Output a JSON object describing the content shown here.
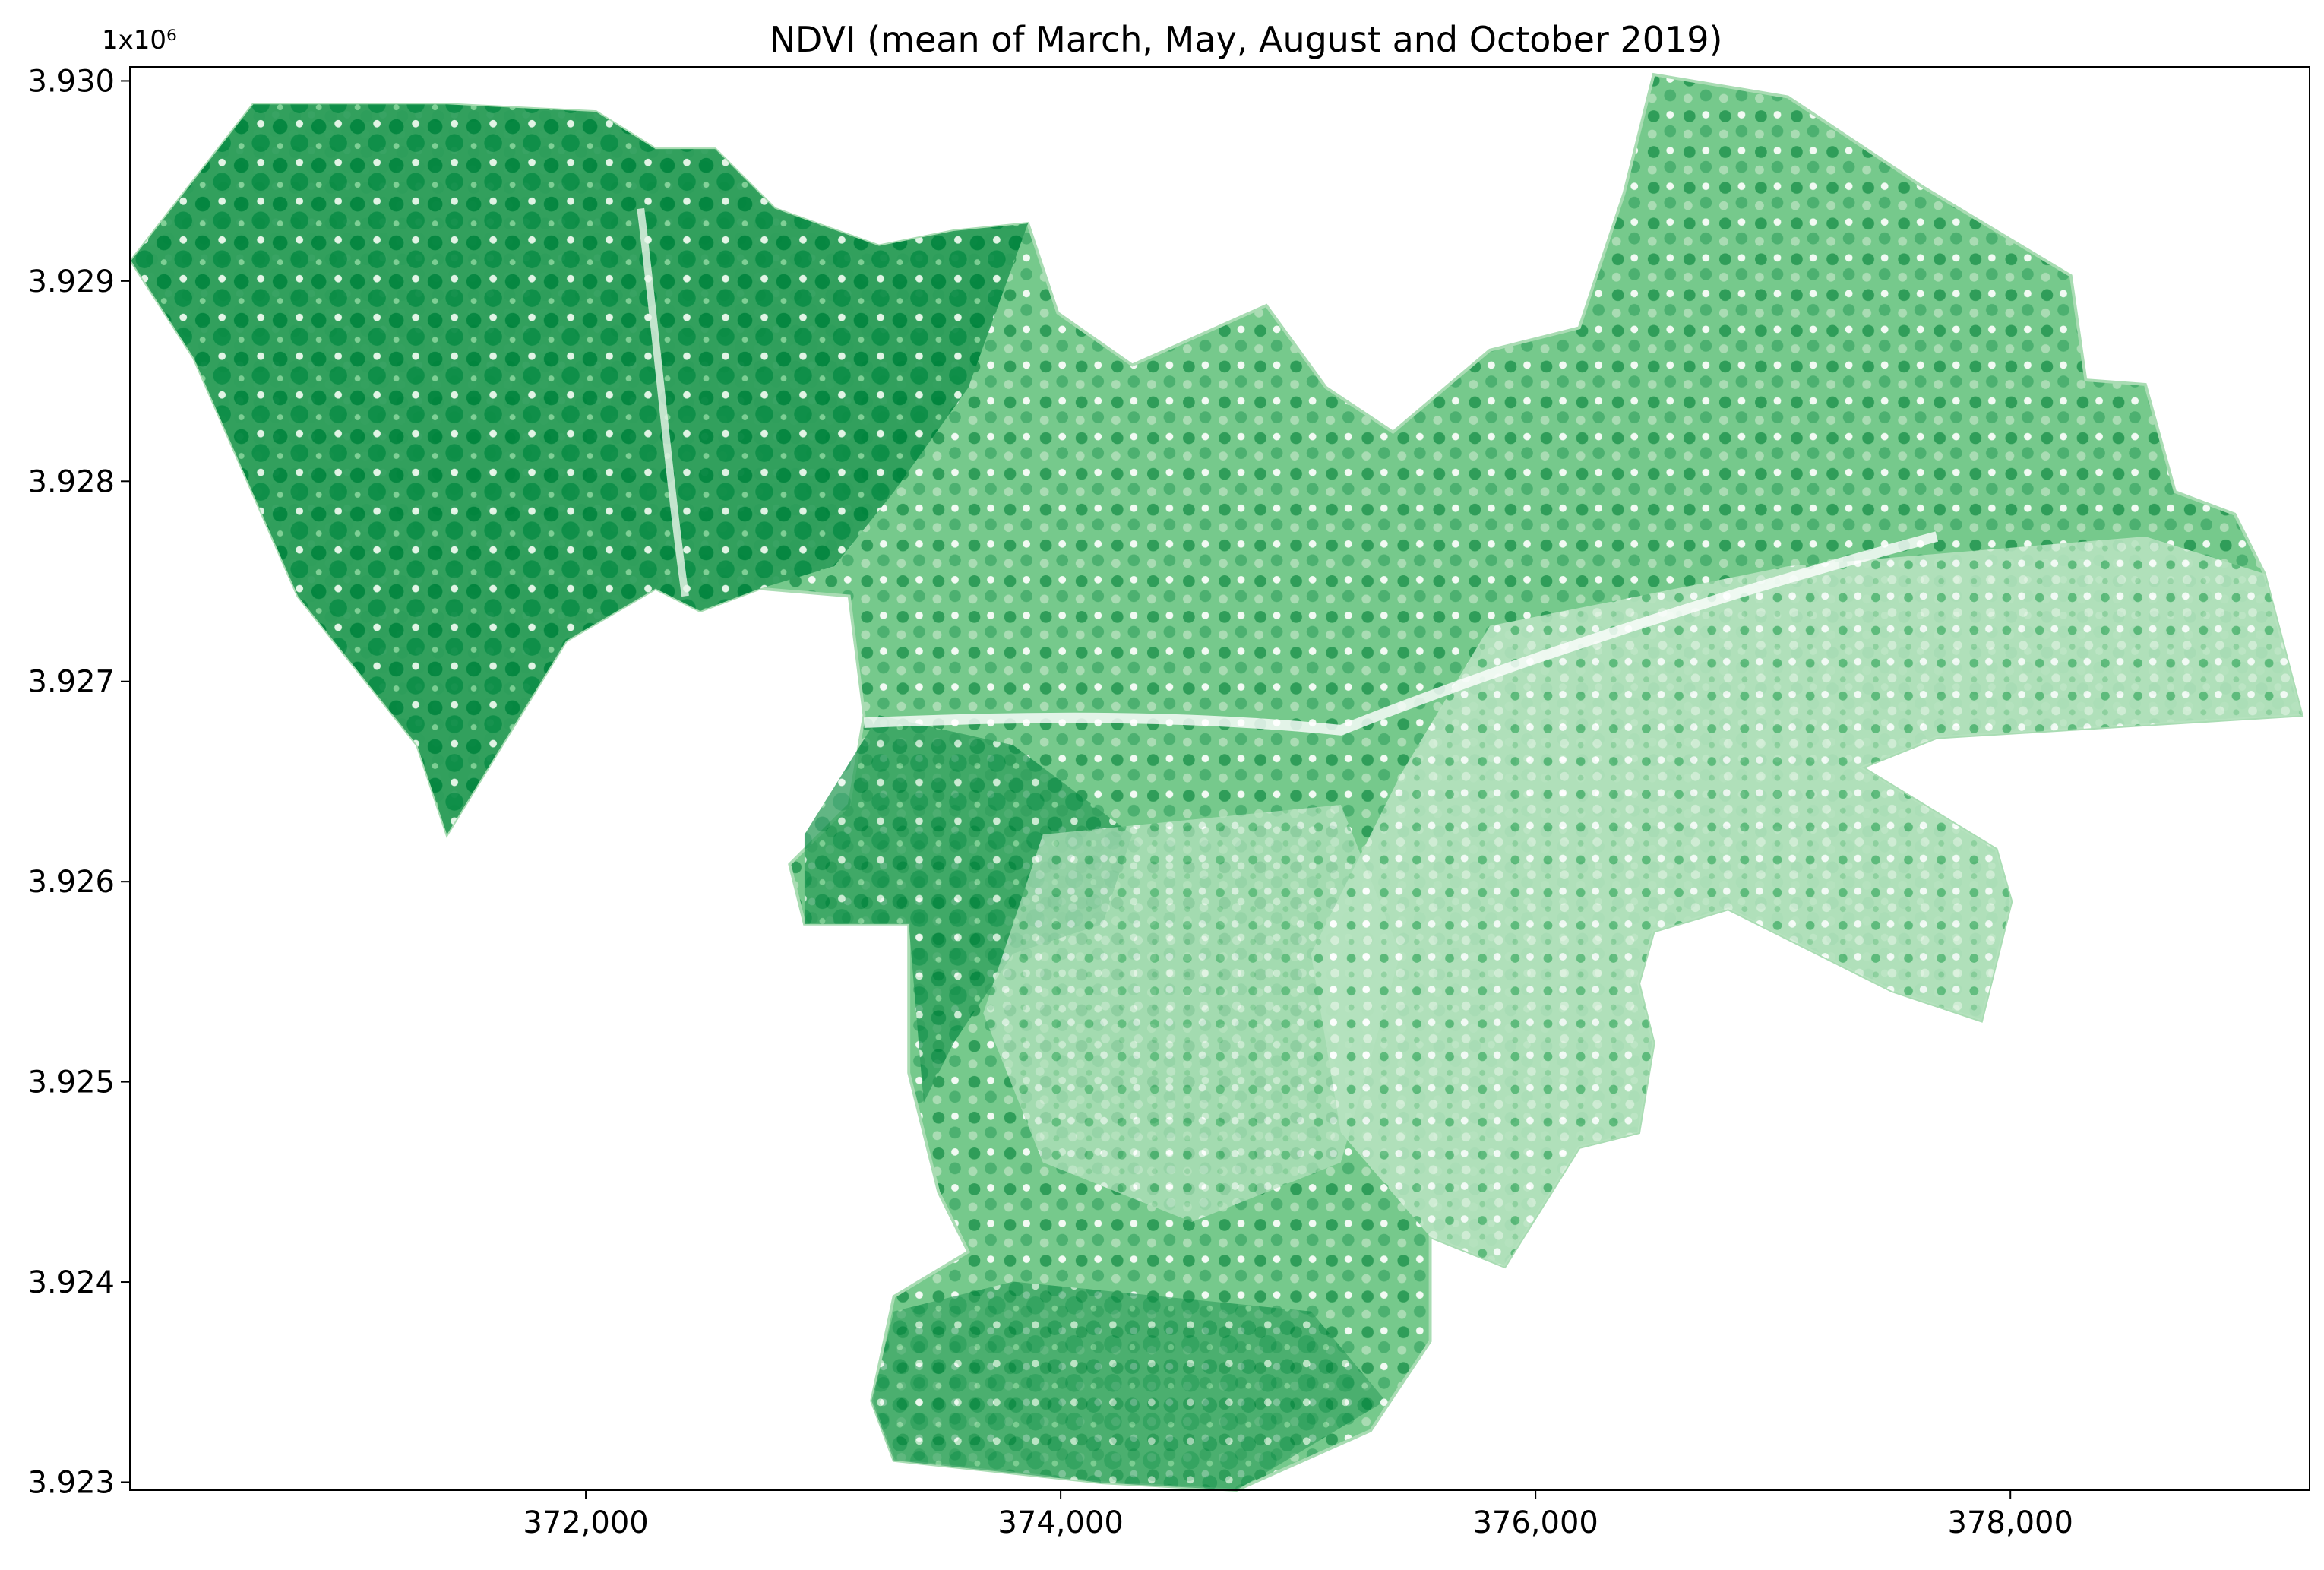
{
  "chart_data": {
    "type": "map",
    "title": "NDVI (mean of March, May, August and October 2019)",
    "y_offset_label": "1x10⁶",
    "xlim": [
      370080,
      379260
    ],
    "ylim": [
      3.92296,
      3.93007
    ],
    "xticks": [
      {
        "value": 372000,
        "label": "372,000"
      },
      {
        "value": 374000,
        "label": "374,000"
      },
      {
        "value": 376000,
        "label": "376,000"
      },
      {
        "value": 378000,
        "label": "378,000"
      }
    ],
    "yticks": [
      {
        "value": 3.923,
        "label": "3.923"
      },
      {
        "value": 3.924,
        "label": "3.924"
      },
      {
        "value": 3.925,
        "label": "3.925"
      },
      {
        "value": 3.926,
        "label": "3.926"
      },
      {
        "value": 3.927,
        "label": "3.927"
      },
      {
        "value": 3.928,
        "label": "3.928"
      },
      {
        "value": 3.929,
        "label": "3.929"
      },
      {
        "value": 3.93,
        "label": "3.930"
      }
    ]
  }
}
